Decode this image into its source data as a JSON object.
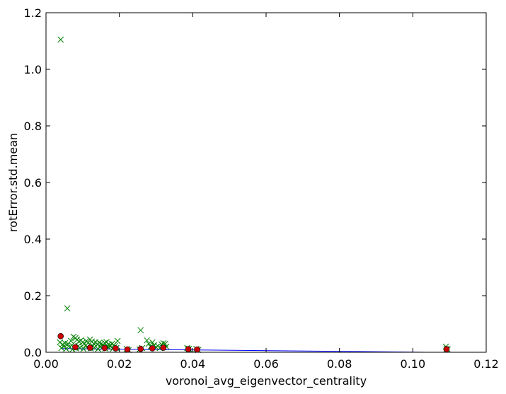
{
  "chart_data": {
    "type": "scatter",
    "title": "",
    "xlabel": "voronoi_avg_eigenvector_centrality",
    "ylabel": "rotError.std.mean",
    "xlim": [
      0.0,
      0.12
    ],
    "ylim": [
      0.0,
      1.2
    ],
    "xticks": [
      0.0,
      0.02,
      0.04,
      0.06,
      0.08,
      0.1,
      0.12
    ],
    "yticks": [
      0.0,
      0.2,
      0.4,
      0.6,
      0.8,
      1.0,
      1.2
    ],
    "xtick_labels": [
      "0.00",
      "0.02",
      "0.04",
      "0.06",
      "0.08",
      "0.10",
      "0.12"
    ],
    "ytick_labels": [
      "0.0",
      "0.2",
      "0.4",
      "0.6",
      "0.8",
      "1.0",
      "1.2"
    ],
    "grid": false,
    "colors": {
      "points": "#008000",
      "means": "#cc0000",
      "fit": "#0000ff"
    },
    "series": [
      {
        "marker": "x",
        "points": [
          [
            0.004,
            1.105
          ],
          [
            0.0058,
            0.155
          ],
          [
            0.0258,
            0.078
          ],
          [
            0.0038,
            0.035
          ],
          [
            0.0045,
            0.028
          ],
          [
            0.0052,
            0.032
          ],
          [
            0.006,
            0.03
          ],
          [
            0.0068,
            0.04
          ],
          [
            0.0075,
            0.055
          ],
          [
            0.008,
            0.05
          ],
          [
            0.0085,
            0.045
          ],
          [
            0.009,
            0.038
          ],
          [
            0.0095,
            0.042
          ],
          [
            0.01,
            0.035
          ],
          [
            0.0105,
            0.03
          ],
          [
            0.011,
            0.04
          ],
          [
            0.0115,
            0.033
          ],
          [
            0.012,
            0.045
          ],
          [
            0.0125,
            0.038
          ],
          [
            0.013,
            0.03
          ],
          [
            0.0135,
            0.036
          ],
          [
            0.014,
            0.028
          ],
          [
            0.0145,
            0.034
          ],
          [
            0.015,
            0.03
          ],
          [
            0.0155,
            0.026
          ],
          [
            0.016,
            0.033
          ],
          [
            0.0165,
            0.036
          ],
          [
            0.017,
            0.028
          ],
          [
            0.0175,
            0.024
          ],
          [
            0.018,
            0.03
          ],
          [
            0.0185,
            0.026
          ],
          [
            0.0195,
            0.04
          ],
          [
            0.0042,
            0.015
          ],
          [
            0.0055,
            0.012
          ],
          [
            0.0065,
            0.018
          ],
          [
            0.0072,
            0.01
          ],
          [
            0.0082,
            0.014
          ],
          [
            0.0092,
            0.016
          ],
          [
            0.0102,
            0.012
          ],
          [
            0.0112,
            0.018
          ],
          [
            0.0122,
            0.014
          ],
          [
            0.0132,
            0.016
          ],
          [
            0.0142,
            0.012
          ],
          [
            0.0152,
            0.015
          ],
          [
            0.0162,
            0.013
          ],
          [
            0.0172,
            0.017
          ],
          [
            0.0182,
            0.012
          ],
          [
            0.0192,
            0.015
          ],
          [
            0.005,
            0.022
          ],
          [
            0.007,
            0.025
          ],
          [
            0.0088,
            0.022
          ],
          [
            0.0108,
            0.024
          ],
          [
            0.0128,
            0.022
          ],
          [
            0.0148,
            0.021
          ],
          [
            0.0168,
            0.02
          ],
          [
            0.0188,
            0.022
          ],
          [
            0.022,
            0.012
          ],
          [
            0.0225,
            0.008
          ],
          [
            0.0255,
            0.01
          ],
          [
            0.0262,
            0.015
          ],
          [
            0.0275,
            0.042
          ],
          [
            0.028,
            0.03
          ],
          [
            0.0285,
            0.02
          ],
          [
            0.029,
            0.035
          ],
          [
            0.0295,
            0.025
          ],
          [
            0.03,
            0.018
          ],
          [
            0.0305,
            0.022
          ],
          [
            0.031,
            0.015
          ],
          [
            0.0315,
            0.028
          ],
          [
            0.032,
            0.032
          ],
          [
            0.0325,
            0.03
          ],
          [
            0.0328,
            0.02
          ],
          [
            0.0385,
            0.015
          ],
          [
            0.0388,
            0.01
          ],
          [
            0.039,
            0.012
          ],
          [
            0.041,
            0.012
          ],
          [
            0.0415,
            0.008
          ],
          [
            0.109,
            0.02
          ],
          [
            0.1092,
            0.012
          ],
          [
            0.1095,
            0.01
          ]
        ]
      },
      {
        "marker": "o",
        "points": [
          [
            0.004,
            0.057
          ],
          [
            0.008,
            0.018
          ],
          [
            0.012,
            0.016
          ],
          [
            0.016,
            0.015
          ],
          [
            0.019,
            0.014
          ],
          [
            0.0222,
            0.01
          ],
          [
            0.0258,
            0.012
          ],
          [
            0.029,
            0.014
          ],
          [
            0.032,
            0.016
          ],
          [
            0.0388,
            0.011
          ],
          [
            0.0412,
            0.01
          ],
          [
            0.1092,
            0.011
          ]
        ]
      },
      {
        "marker": "line",
        "points": [
          [
            0.004,
            0.013
          ],
          [
            0.104,
            0.0
          ]
        ]
      }
    ]
  }
}
